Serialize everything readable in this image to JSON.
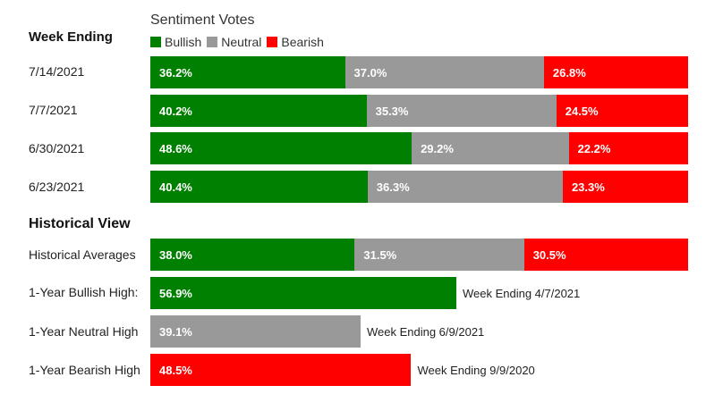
{
  "colors": {
    "bullish": "#008000",
    "neutral": "#999999",
    "bearish": "#ff0000"
  },
  "legend": {
    "title": "Sentiment Votes",
    "items": [
      {
        "label": "Bullish",
        "color": "#008000"
      },
      {
        "label": "Neutral",
        "color": "#999999"
      },
      {
        "label": "Bearish",
        "color": "#ff0000"
      }
    ]
  },
  "week_section_title": "Week Ending",
  "historical_section_title": "Historical View",
  "chart_data": {
    "type": "bar",
    "stacked": true,
    "orientation": "horizontal",
    "title": "Sentiment Votes",
    "legend_position": "top-left",
    "series_names": [
      "Bullish",
      "Neutral",
      "Bearish"
    ],
    "weekly": [
      {
        "label": "7/14/2021",
        "values": [
          36.2,
          37.0,
          26.8
        ],
        "value_labels": [
          "36.2%",
          "37.0%",
          "26.8%"
        ]
      },
      {
        "label": "7/7/2021",
        "values": [
          40.2,
          35.3,
          24.5
        ],
        "value_labels": [
          "40.2%",
          "35.3%",
          "24.5%"
        ]
      },
      {
        "label": "6/30/2021",
        "values": [
          48.6,
          29.2,
          22.2
        ],
        "value_labels": [
          "48.6%",
          "29.2%",
          "22.2%"
        ]
      },
      {
        "label": "6/23/2021",
        "values": [
          40.4,
          36.3,
          23.3
        ],
        "value_labels": [
          "40.4%",
          "36.3%",
          "23.3%"
        ]
      }
    ],
    "historical_averages": {
      "label": "Historical Averages",
      "values": [
        38.0,
        31.5,
        30.5
      ],
      "value_labels": [
        "38.0%",
        "31.5%",
        "30.5%"
      ]
    },
    "highs": [
      {
        "label": "1-Year Bullish High:",
        "series": "bullish",
        "value": 56.9,
        "value_label": "56.9%",
        "note": "Week Ending 4/7/2021"
      },
      {
        "label": "1-Year Neutral High",
        "series": "neutral",
        "value": 39.1,
        "value_label": "39.1%",
        "note": "Week Ending 6/9/2021"
      },
      {
        "label": "1-Year Bearish High",
        "series": "bearish",
        "value": 48.5,
        "value_label": "48.5%",
        "note": "Week Ending 9/9/2020"
      }
    ]
  }
}
